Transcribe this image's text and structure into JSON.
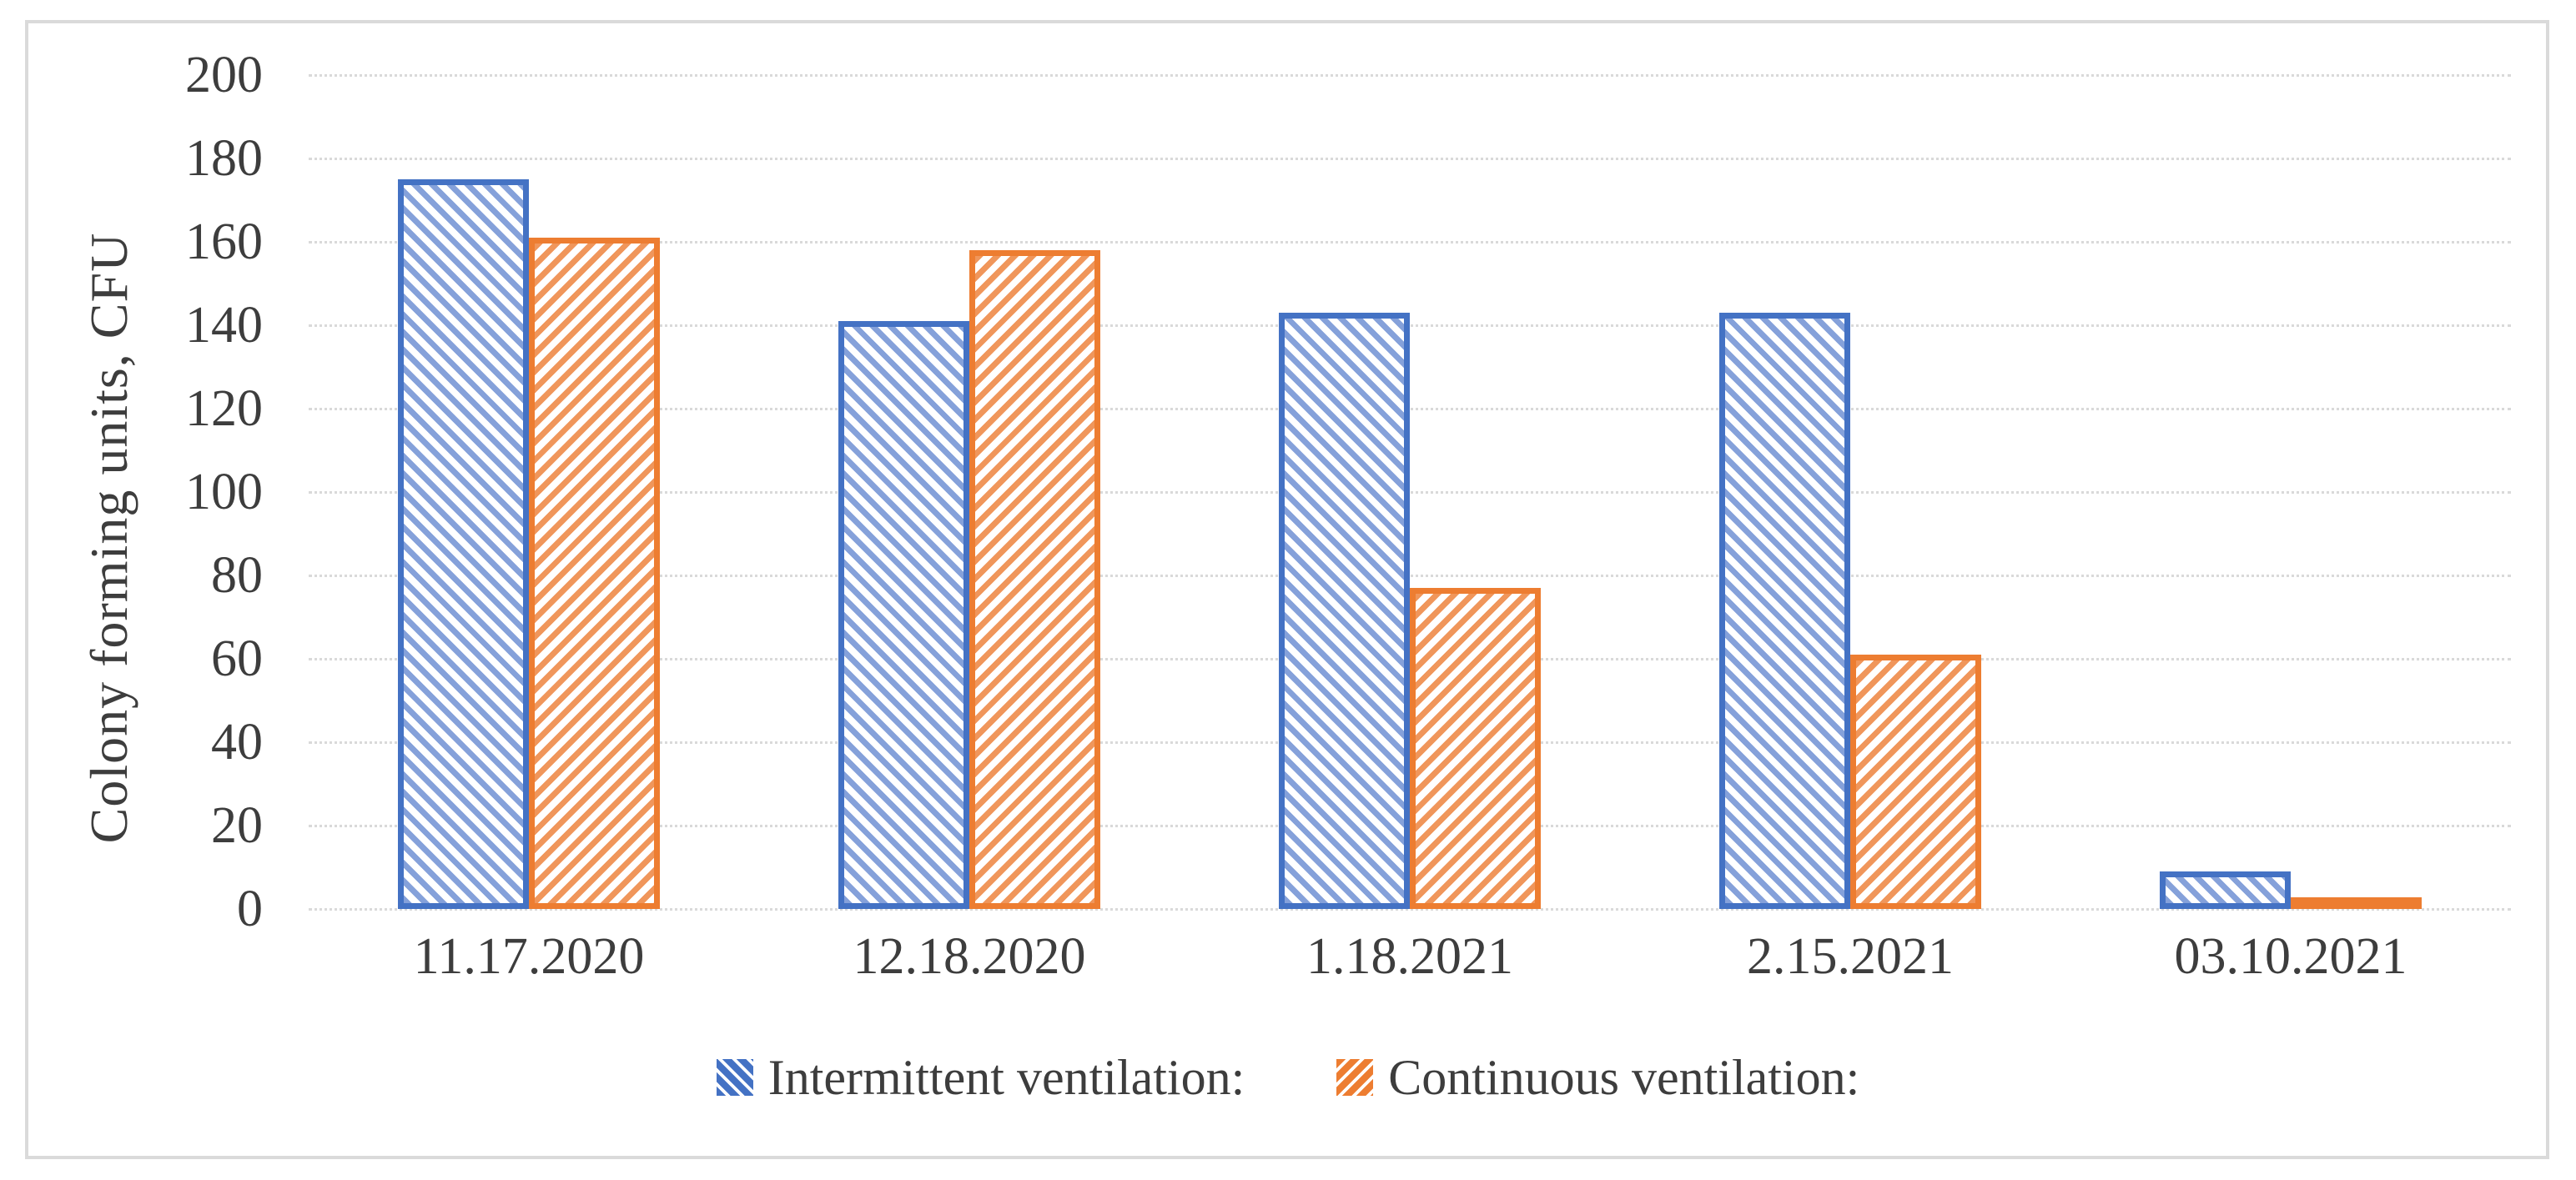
{
  "chart_data": {
    "type": "bar",
    "title": "",
    "xlabel": "",
    "ylabel": "Colony  forming  units,  CFU",
    "categories": [
      "11.17.2020",
      "12.18.2020",
      "1.18.2021",
      "2.15.2021",
      "03.10.2021"
    ],
    "series": [
      {
        "name": "Intermittent ventilation:",
        "values": [
          175,
          141,
          143,
          143,
          9
        ],
        "color": "#4472C4",
        "stripe_color": "#85A1DA",
        "hatch": "backslash"
      },
      {
        "name": "Continuous  ventilation:",
        "values": [
          161,
          158,
          77,
          61,
          1
        ],
        "color": "#ED7D31",
        "stripe_color": "#F0965B",
        "hatch": "slash"
      }
    ],
    "ylim": [
      0,
      200
    ],
    "ytick_step": 20,
    "yticks": [
      0,
      20,
      40,
      60,
      80,
      100,
      120,
      140,
      160,
      180,
      200
    ],
    "grid": "horizontal dotted",
    "gridline_color": "#D9D9D9",
    "text_color": "#3D3D3D",
    "legend_position": "bottom"
  }
}
